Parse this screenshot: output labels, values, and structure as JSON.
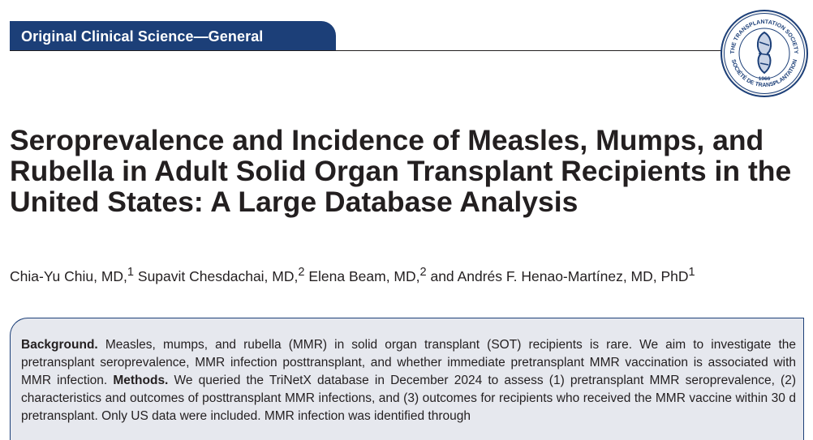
{
  "header": {
    "section": "Original Clinical Science—General",
    "seal": {
      "top_text": "THE TRANSPLANTATION SOCIETY",
      "bottom_text": "SOCIÉTÉ DE TRANSPLANTATION",
      "year": "1966"
    }
  },
  "colors": {
    "brand": "#1c3f78",
    "abstract_bg": "#e6e8ee",
    "text": "#231f20"
  },
  "article": {
    "title": "Seroprevalence and Incidence of Measles, Mumps, and Rubella in Adult Solid Organ Transplant Recipients in the United States: A Large Database Analysis",
    "authors": [
      {
        "name": "Chia-Yu Chiu, MD,",
        "affiliation": "1",
        "sep": " "
      },
      {
        "name": "Supavit Chesdachai, MD,",
        "affiliation": "2",
        "sep": " "
      },
      {
        "name": "Elena Beam, MD,",
        "affiliation": "2",
        "sep": " and "
      },
      {
        "name": "Andrés F. Henao-Martínez, MD, PhD",
        "affiliation": "1",
        "sep": ""
      }
    ]
  },
  "abstract": {
    "background_heading": "Background.",
    "background_text": " Measles, mumps, and rubella (MMR) in solid organ transplant (SOT) recipients is rare. We aim to investigate the pretransplant seroprevalence, MMR infection posttransplant, and whether immediate pretransplant MMR vaccination is associated with MMR infection. ",
    "methods_heading": "Methods.",
    "methods_text": " We queried the TriNetX database in December 2024 to assess (1) pretransplant MMR seroprevalence, (2) characteristics and outcomes of posttransplant MMR infections, and (3) outcomes for recipients who received the MMR vaccine within 30 d pretransplant. Only US data were included. MMR infection was identified through"
  }
}
